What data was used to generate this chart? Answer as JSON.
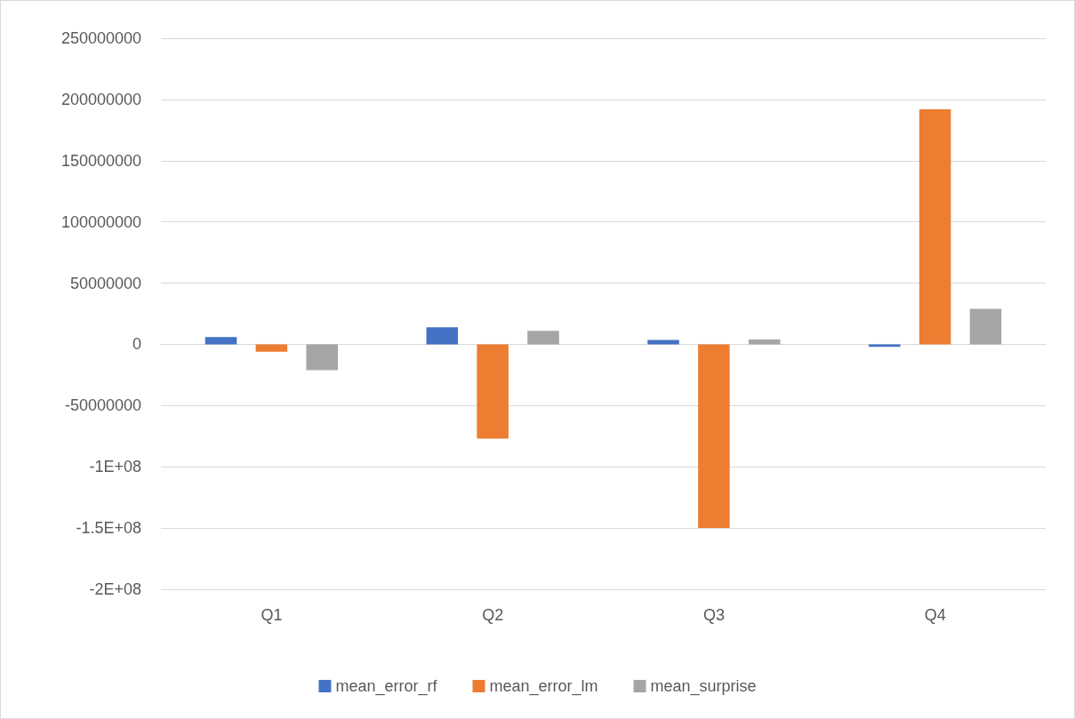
{
  "chart_data": {
    "type": "bar",
    "categories": [
      "Q1",
      "Q2",
      "Q3",
      "Q4"
    ],
    "series": [
      {
        "name": "mean_error_rf",
        "color": "#4472c4",
        "values": [
          6000000,
          14000000,
          3500000,
          -2000000
        ]
      },
      {
        "name": "mean_error_lm",
        "color": "#ed7d31",
        "values": [
          -6000000,
          -77000000,
          -150000000,
          192000000
        ]
      },
      {
        "name": "mean_surprise",
        "color": "#a5a5a5",
        "values": [
          -21000000,
          11000000,
          4000000,
          29000000
        ]
      }
    ],
    "ylim": [
      -200000000,
      250000000
    ],
    "yticks": [
      {
        "value": -200000000,
        "label": "-2E+08"
      },
      {
        "value": -150000000,
        "label": "-1.5E+08"
      },
      {
        "value": -100000000,
        "label": "-1E+08"
      },
      -50000000,
      0,
      50000000,
      100000000,
      150000000,
      200000000,
      250000000
    ],
    "grid": "y",
    "legend": "bottom"
  }
}
